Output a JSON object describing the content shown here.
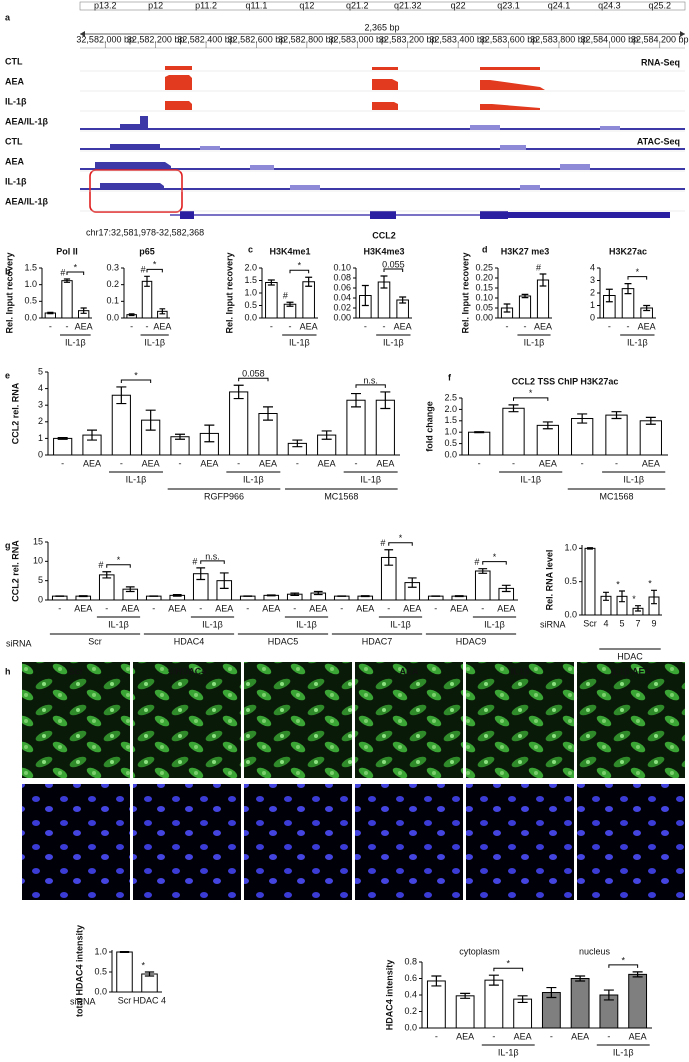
{
  "panel_labels": [
    "a",
    "b",
    "c",
    "d",
    "e",
    "f",
    "g",
    "h"
  ],
  "browser": {
    "bands": [
      "p13.2",
      "p12",
      "p11.2",
      "q11.1",
      "q12",
      "q21.2",
      "q21.32",
      "q22",
      "q23.1",
      "q24.1",
      "q24.3",
      "q25.2"
    ],
    "span": "2,365 bp",
    "positions": [
      "32,582,000 bp",
      "32,582,200 bp",
      "32,582,400 bp",
      "32,582,600 bp",
      "32,582,800 bp",
      "32,583,000 bp",
      "32,583,200 bp",
      "32,583,400 bp",
      "32,583,600 bp",
      "32,583,800 bp",
      "32,584,000 bp",
      "32,584,200 bp"
    ],
    "tracks": [
      "CTL",
      "AEA",
      "IL-1β",
      "AEA/IL-1β",
      "CTL",
      "AEA",
      "IL-1β",
      "AEA/IL-1β"
    ],
    "rna_label": "RNA-Seq",
    "atac_label": "ATAC-Seq",
    "region": "chr17:32,581,978-32,582,368",
    "gene": "CCL2"
  },
  "chart_data": [
    {
      "type": "bar",
      "title": "Pol II",
      "ylabel": "Rel. Input recovery",
      "categories": [
        "-",
        "-",
        "AEA"
      ],
      "values": [
        0.15,
        1.12,
        0.22
      ],
      "errors": [
        0.02,
        0.05,
        0.08
      ],
      "color": "#ffffff",
      "ylim": [
        0,
        1.5
      ],
      "yticks": [
        {
          "value": 0,
          "label": "0.0"
        },
        0.5,
        {
          "value": 1,
          "label": "1.0"
        },
        1.5
      ],
      "groups": [
        {
          "label": "IL-1β",
          "members": [
            1,
            2
          ]
        }
      ],
      "annotations": [
        {
          "text": "#",
          "over": 1
        },
        {
          "text": "*",
          "bracket": [
            1,
            2
          ]
        }
      ]
    },
    {
      "type": "bar",
      "title": "p65",
      "categories": [
        "-",
        "-",
        "AEA"
      ],
      "values": [
        0.02,
        0.22,
        0.04
      ],
      "errors": [
        0.005,
        0.03,
        0.015
      ],
      "color": "#ffffff",
      "ylim": [
        0,
        0.3
      ],
      "yticks": [
        {
          "value": 0,
          "label": "0.0"
        },
        0.1,
        0.2,
        0.3
      ],
      "groups": [
        {
          "label": "IL-1β",
          "members": [
            1,
            2
          ]
        }
      ],
      "annotations": [
        {
          "text": "#",
          "over": 1
        },
        {
          "text": "*",
          "bracket": [
            1,
            2
          ]
        }
      ]
    },
    {
      "type": "bar",
      "title": "H3K4me1",
      "ylabel": "Rel. Input recovery",
      "categories": [
        "-",
        "-",
        "AEA"
      ],
      "values": [
        1.42,
        0.55,
        1.45
      ],
      "errors": [
        0.1,
        0.08,
        0.18
      ],
      "color": "#ffffff",
      "ylim": [
        0,
        2
      ],
      "yticks": [
        {
          "value": 0,
          "label": "0.0"
        },
        0.5,
        {
          "value": 1,
          "label": "1.0"
        },
        1.5,
        {
          "value": 2,
          "label": "2.0"
        }
      ],
      "groups": [
        {
          "label": "IL-1β",
          "members": [
            1,
            2
          ]
        }
      ],
      "annotations": [
        {
          "text": "#",
          "over": 1
        },
        {
          "text": "*",
          "bracket": [
            1,
            2
          ]
        }
      ]
    },
    {
      "type": "bar",
      "title": "H3K4me3",
      "categories": [
        "-",
        "-",
        "AEA"
      ],
      "values": [
        0.045,
        0.072,
        0.036
      ],
      "errors": [
        0.02,
        0.012,
        0.006
      ],
      "color": "#ffffff",
      "ylim": [
        0,
        0.1
      ],
      "yticks": [
        {
          "value": 0,
          "label": "0.00"
        },
        0.02,
        0.04,
        0.06,
        0.08,
        {
          "value": 0.1,
          "label": "0.10"
        }
      ],
      "groups": [
        {
          "label": "IL-1β",
          "members": [
            1,
            2
          ]
        }
      ],
      "annotations": [
        {
          "text": "0.055",
          "bracket": [
            1,
            2
          ]
        }
      ]
    },
    {
      "type": "bar",
      "title": "H3K27 me3",
      "ylabel": "Rel. Input recovery",
      "categories": [
        "-",
        "-",
        "AEA"
      ],
      "values": [
        0.05,
        0.11,
        0.19
      ],
      "errors": [
        0.02,
        0.008,
        0.03
      ],
      "color": "#ffffff",
      "ylim": [
        0,
        0.25
      ],
      "yticks": [
        {
          "value": 0,
          "label": "0.00"
        },
        0.05,
        {
          "value": 0.1,
          "label": "0.10"
        },
        0.15,
        {
          "value": 0.2,
          "label": "0.20"
        },
        0.25
      ],
      "groups": [
        {
          "label": "IL-1β",
          "members": [
            1,
            2
          ]
        }
      ],
      "annotations": [
        {
          "text": "#",
          "over": 2
        }
      ]
    },
    {
      "type": "bar",
      "title": "H3K27ac",
      "categories": [
        "-",
        "-",
        "AEA"
      ],
      "values": [
        1.8,
        2.35,
        0.8
      ],
      "errors": [
        0.5,
        0.4,
        0.2
      ],
      "color": "#ffffff",
      "ylim": [
        0,
        4
      ],
      "yticks": [
        0,
        1,
        2,
        3,
        4
      ],
      "groups": [
        {
          "label": "IL-1β",
          "members": [
            1,
            2
          ]
        }
      ],
      "annotations": [
        {
          "text": "*",
          "bracket": [
            1,
            2
          ]
        }
      ]
    },
    {
      "type": "bar",
      "ylabel": "CCL2 rel. RNA",
      "categories": [
        "-",
        "AEA",
        "-",
        "AEA",
        "-",
        "AEA",
        "-",
        "AEA",
        "-",
        "AEA",
        "-",
        "AEA"
      ],
      "values": [
        1,
        1.2,
        3.6,
        2.1,
        1.1,
        1.3,
        3.8,
        2.5,
        0.7,
        1.2,
        3.3,
        3.3
      ],
      "errors": [
        0.05,
        0.3,
        0.5,
        0.6,
        0.15,
        0.5,
        0.4,
        0.4,
        0.2,
        0.25,
        0.4,
        0.5
      ],
      "color": "#ffffff",
      "ylim": [
        0,
        5
      ],
      "yticks": [
        0,
        1,
        2,
        3,
        4,
        5
      ],
      "groups": [
        {
          "label": "IL-1β",
          "members": [
            2,
            3
          ]
        },
        {
          "label": "IL-1β",
          "members": [
            6,
            7
          ]
        },
        {
          "label": "IL-1β",
          "members": [
            10,
            11
          ]
        }
      ],
      "supergroups": [
        {
          "label": "RGFP966",
          "members": [
            4,
            7
          ]
        },
        {
          "label": "MC1568",
          "members": [
            8,
            11
          ]
        }
      ],
      "annotations": [
        {
          "text": "*",
          "bracket": [
            2,
            3
          ]
        },
        {
          "text": "0.058",
          "bracket": [
            6,
            7
          ]
        },
        {
          "text": "n.s.",
          "bracket": [
            10,
            11
          ]
        }
      ]
    },
    {
      "type": "bar",
      "title": "CCL2 TSS ChIP H3K27ac",
      "ylabel": "fold change",
      "categories": [
        "-",
        "-",
        "AEA",
        "-",
        "-",
        "AEA"
      ],
      "values": [
        1,
        2.05,
        1.3,
        1.6,
        1.75,
        1.5
      ],
      "errors": [
        0.02,
        0.15,
        0.15,
        0.2,
        0.15,
        0.15
      ],
      "color": "#ffffff",
      "ylim": [
        0,
        2.5
      ],
      "yticks": [
        {
          "value": 0,
          "label": "0.0"
        },
        0.5,
        {
          "value": 1,
          "label": "1.0"
        },
        1.5,
        {
          "value": 2,
          "label": "2.0"
        },
        2.5
      ],
      "groups": [
        {
          "label": "IL-1β",
          "members": [
            1,
            2
          ]
        },
        {
          "label": "IL-1β",
          "members": [
            4,
            5
          ]
        }
      ],
      "supergroups": [
        {
          "label": "MC1568",
          "members": [
            3,
            5
          ]
        }
      ],
      "annotations": [
        {
          "text": "*",
          "bracket": [
            1,
            2
          ]
        }
      ]
    },
    {
      "type": "bar",
      "ylabel": "CCL2 rel. RNA",
      "xlabel": "siRNA",
      "categories": [
        "-",
        "AEA",
        "-",
        "AEA",
        "-",
        "AEA",
        "-",
        "AEA",
        "-",
        "AEA",
        "-",
        "AEA",
        "-",
        "AEA",
        "-",
        "AEA",
        "-",
        "AEA",
        "-",
        "AEA"
      ],
      "values": [
        1,
        1,
        6.5,
        2.8,
        1,
        1.2,
        6.8,
        5,
        1,
        1.2,
        1.5,
        1.8,
        1,
        1,
        11,
        4.5,
        1,
        1,
        7.5,
        3
      ],
      "errors": [
        0.05,
        0.1,
        0.8,
        0.6,
        0.05,
        0.2,
        1.5,
        2,
        0.05,
        0.1,
        0.3,
        0.4,
        0.05,
        0.1,
        2,
        1.2,
        0.05,
        0.1,
        0.6,
        0.8
      ],
      "color": "#ffffff",
      "ylim": [
        0,
        15
      ],
      "yticks": [
        0,
        5,
        10,
        15
      ],
      "groups": [
        {
          "label": "IL-1β",
          "members": [
            2,
            3
          ]
        },
        {
          "label": "IL-1β",
          "members": [
            6,
            7
          ]
        },
        {
          "label": "IL-1β",
          "members": [
            10,
            11
          ]
        },
        {
          "label": "IL-1β",
          "members": [
            14,
            15
          ]
        },
        {
          "label": "IL-1β",
          "members": [
            18,
            19
          ]
        }
      ],
      "supergroups": [
        {
          "label": "Scr",
          "members": [
            0,
            3
          ]
        },
        {
          "label": "HDAC4",
          "members": [
            4,
            7
          ]
        },
        {
          "label": "HDAC5",
          "members": [
            8,
            11
          ]
        },
        {
          "label": "HDAC7",
          "members": [
            12,
            15
          ]
        },
        {
          "label": "HDAC9",
          "members": [
            16,
            19
          ]
        }
      ],
      "annotations": [
        {
          "text": "#",
          "over": 2
        },
        {
          "text": "*",
          "bracket": [
            2,
            3
          ]
        },
        {
          "text": "#",
          "over": 6
        },
        {
          "text": "n.s.",
          "bracket": [
            6,
            7
          ]
        },
        {
          "text": "#",
          "over": 14
        },
        {
          "text": "*",
          "bracket": [
            14,
            15
          ]
        },
        {
          "text": "#",
          "over": 18
        },
        {
          "text": "*",
          "bracket": [
            18,
            19
          ]
        }
      ]
    },
    {
      "type": "bar",
      "ylabel": "Rel. RNA level",
      "xlabel": "siRNA",
      "categories": [
        "Scr",
        "4",
        "5",
        "7",
        "9"
      ],
      "values": [
        1,
        0.28,
        0.28,
        0.1,
        0.27
      ],
      "errors": [
        0.01,
        0.06,
        0.08,
        0.04,
        0.1
      ],
      "color": "#ffffff",
      "ylim": [
        0,
        1.05
      ],
      "yticks": [
        {
          "value": 0,
          "label": "0.0"
        },
        0.5,
        {
          "value": 1,
          "label": "1.0"
        }
      ],
      "supergroups": [
        {
          "label": "HDAC",
          "members": [
            1,
            4
          ]
        }
      ],
      "annotations": [
        {
          "text": "*",
          "over": 2
        },
        {
          "text": "*",
          "over": 3
        },
        {
          "text": "*",
          "over": 4
        }
      ]
    },
    {
      "type": "bar",
      "ylabel": "total HDAC4 intensity",
      "xlabel": "siRNA",
      "categories": [
        "Scr",
        "HDAC 4"
      ],
      "values": [
        1,
        0.45
      ],
      "errors": [
        0.01,
        0.05
      ],
      "color": "#ffffff",
      "ylim": [
        0,
        1.05
      ],
      "yticks": [
        {
          "value": 0,
          "label": "0.0"
        },
        0.5,
        {
          "value": 1,
          "label": "1.0"
        }
      ],
      "annotations": [
        {
          "text": "*",
          "over": 1
        }
      ]
    },
    {
      "type": "bar",
      "ylabel": "HDAC4 intensity",
      "categories": [
        "-",
        "AEA",
        "-",
        "AEA",
        "-",
        "AEA",
        "-",
        "AEA"
      ],
      "values": [
        0.57,
        0.39,
        0.58,
        0.35,
        0.43,
        0.6,
        0.4,
        0.65
      ],
      "errors": [
        0.06,
        0.03,
        0.06,
        0.04,
        0.06,
        0.03,
        0.06,
        0.03
      ],
      "bar_colors": [
        "#ffffff",
        "#ffffff",
        "#ffffff",
        "#ffffff",
        "#7f7f7f",
        "#7f7f7f",
        "#7f7f7f",
        "#7f7f7f"
      ],
      "ylim": [
        0,
        0.8
      ],
      "yticks": [
        {
          "value": 0,
          "label": "0.0"
        },
        0.2,
        0.4,
        0.6,
        0.8
      ],
      "headers": [
        {
          "label": "cytoplasm",
          "members": [
            0,
            3
          ]
        },
        {
          "label": "nucleus",
          "members": [
            4,
            7
          ]
        }
      ],
      "groups": [
        {
          "label": "IL-1β",
          "members": [
            2,
            3
          ]
        },
        {
          "label": "IL-1β",
          "members": [
            6,
            7
          ]
        }
      ],
      "annotations": [
        {
          "text": "*",
          "bracket": [
            2,
            3
          ]
        },
        {
          "text": "*",
          "bracket": [
            6,
            7
          ]
        }
      ]
    }
  ],
  "images": {
    "labels": [
      "Scr",
      "siHDAC4",
      "AEA",
      "IL1β",
      "IL1β AEA"
    ]
  }
}
